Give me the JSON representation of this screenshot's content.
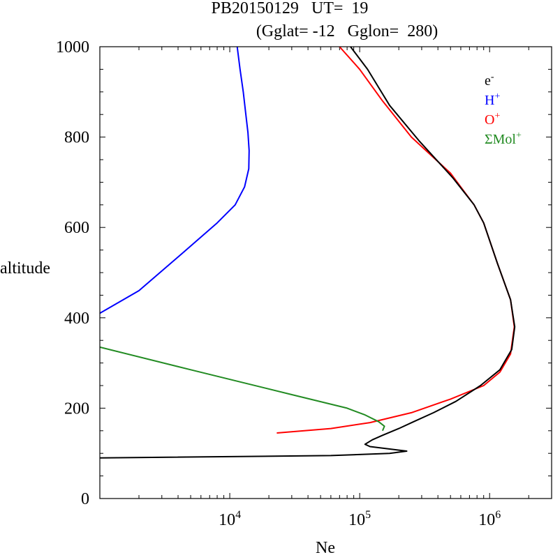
{
  "title_line1": "PB20150129   UT=  19",
  "title_line2": "(Gglat= -12   Gglon=  280)",
  "chart_data": {
    "type": "line",
    "xlabel": "Ne",
    "ylabel": "altitude",
    "xscale": "log",
    "xlim": [
      1000,
      3000000
    ],
    "ylim": [
      0,
      1000
    ],
    "x_tick_labels": [
      {
        "base": "10",
        "exp": "4",
        "value": 10000
      },
      {
        "base": "10",
        "exp": "5",
        "value": 100000
      },
      {
        "base": "10",
        "exp": "6",
        "value": 1000000
      }
    ],
    "y_ticks": [
      0,
      200,
      400,
      600,
      800,
      1000
    ],
    "y_tick_labels": [
      "0",
      "200",
      "400",
      "600",
      "800",
      "1000"
    ],
    "legend_position": "top-right",
    "legend": [
      {
        "base": "e",
        "sup": "-",
        "color": "#000000"
      },
      {
        "base": "H",
        "sup": "+",
        "color": "#0000ff"
      },
      {
        "base": "O",
        "sup": "+",
        "color": "#ff0000"
      },
      {
        "base": "ΣMol",
        "sup": "+",
        "color": "#228b22"
      }
    ],
    "series": [
      {
        "name": "H+",
        "color": "#0000ff",
        "points": [
          [
            1000,
            410
          ],
          [
            2000,
            460
          ],
          [
            4200,
            540
          ],
          [
            8000,
            610
          ],
          [
            11000,
            650
          ],
          [
            13000,
            690
          ],
          [
            14000,
            730
          ],
          [
            14100,
            770
          ],
          [
            13800,
            810
          ],
          [
            13300,
            850
          ],
          [
            12700,
            900
          ],
          [
            12000,
            950
          ],
          [
            11400,
            1000
          ]
        ]
      },
      {
        "name": "O+",
        "color": "#ff0000",
        "points": [
          [
            23000,
            145
          ],
          [
            60000,
            155
          ],
          [
            120000,
            168
          ],
          [
            250000,
            190
          ],
          [
            500000,
            220
          ],
          [
            900000,
            250
          ],
          [
            1200000,
            280
          ],
          [
            1450000,
            320
          ],
          [
            1550000,
            380
          ],
          [
            1450000,
            440
          ],
          [
            1150000,
            520
          ],
          [
            900000,
            610
          ],
          [
            760000,
            650
          ],
          [
            500000,
            720
          ],
          [
            250000,
            800
          ],
          [
            150000,
            880
          ],
          [
            100000,
            950
          ],
          [
            70000,
            1000
          ]
        ]
      },
      {
        "name": "e-",
        "color": "#000000",
        "points": [
          [
            1000,
            90
          ],
          [
            60000,
            95
          ],
          [
            170000,
            100
          ],
          [
            230000,
            105
          ],
          [
            120000,
            115
          ],
          [
            110000,
            120
          ],
          [
            125000,
            130
          ],
          [
            150000,
            140
          ],
          [
            200000,
            155
          ],
          [
            260000,
            170
          ],
          [
            370000,
            190
          ],
          [
            550000,
            215
          ],
          [
            850000,
            250
          ],
          [
            1200000,
            285
          ],
          [
            1480000,
            330
          ],
          [
            1560000,
            380
          ],
          [
            1450000,
            440
          ],
          [
            1150000,
            520
          ],
          [
            900000,
            610
          ],
          [
            760000,
            650
          ],
          [
            520000,
            710
          ],
          [
            290000,
            790
          ],
          [
            170000,
            870
          ],
          [
            115000,
            950
          ],
          [
            85000,
            1000
          ]
        ]
      },
      {
        "name": "ΣMol+",
        "color": "#228b22",
        "points": [
          [
            1000,
            335
          ],
          [
            5000,
            285
          ],
          [
            30000,
            230
          ],
          [
            80000,
            200
          ],
          [
            110000,
            185
          ],
          [
            140000,
            170
          ],
          [
            155000,
            160
          ],
          [
            150000,
            150
          ]
        ]
      }
    ]
  }
}
